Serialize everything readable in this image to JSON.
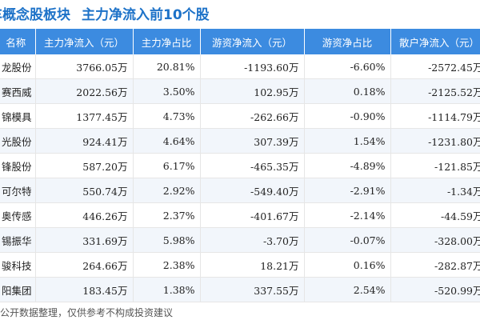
{
  "header": {
    "title": "车概念股板块",
    "subtitle": "主力净流入前10个股"
  },
  "table": {
    "columns": [
      "名称",
      "主力净流入（元）",
      "主力净占比",
      "游资净流入（元）",
      "游资净占比",
      "散户净流入（元）"
    ],
    "rows": [
      {
        "name": "龙股份",
        "main_in": "3766.05万",
        "main_ratio": "20.81%",
        "hot_in": "-1193.60万",
        "hot_ratio": "-6.60%",
        "retail_in": "-2572.45万"
      },
      {
        "name": "赛西威",
        "main_in": "2022.56万",
        "main_ratio": "3.50%",
        "hot_in": "102.95万",
        "hot_ratio": "0.18%",
        "retail_in": "-2125.52万"
      },
      {
        "name": "锦模具",
        "main_in": "1377.45万",
        "main_ratio": "4.73%",
        "hot_in": "-262.66万",
        "hot_ratio": "-0.90%",
        "retail_in": "-1114.79万"
      },
      {
        "name": "光股份",
        "main_in": "924.41万",
        "main_ratio": "4.64%",
        "hot_in": "307.39万",
        "hot_ratio": "1.54%",
        "retail_in": "-1231.80万"
      },
      {
        "name": "锋股份",
        "main_in": "587.20万",
        "main_ratio": "6.17%",
        "hot_in": "-465.35万",
        "hot_ratio": "-4.89%",
        "retail_in": "-121.85万"
      },
      {
        "name": "可尔特",
        "main_in": "550.74万",
        "main_ratio": "2.92%",
        "hot_in": "-549.40万",
        "hot_ratio": "-2.91%",
        "retail_in": "-1.34万"
      },
      {
        "name": "奥传感",
        "main_in": "446.26万",
        "main_ratio": "2.37%",
        "hot_in": "-401.67万",
        "hot_ratio": "-2.14%",
        "retail_in": "-44.59万"
      },
      {
        "name": "锡振华",
        "main_in": "331.69万",
        "main_ratio": "5.98%",
        "hot_in": "-3.70万",
        "hot_ratio": "-0.07%",
        "retail_in": "-328.00万"
      },
      {
        "name": "骏科技",
        "main_in": "264.66万",
        "main_ratio": "2.38%",
        "hot_in": "18.21万",
        "hot_ratio": "0.16%",
        "retail_in": "-282.87万"
      },
      {
        "name": "阳集团",
        "main_in": "183.45万",
        "main_ratio": "1.38%",
        "hot_in": "337.55万",
        "hot_ratio": "2.54%",
        "retail_in": "-520.99万"
      }
    ]
  },
  "footer": {
    "source": "公开数据整理，仅供参考不构成投资建议"
  },
  "colors": {
    "header_bg": "#3c8be0",
    "title": "#1d72c8",
    "positive": "#e23232",
    "negative": "#0e9a3c"
  }
}
